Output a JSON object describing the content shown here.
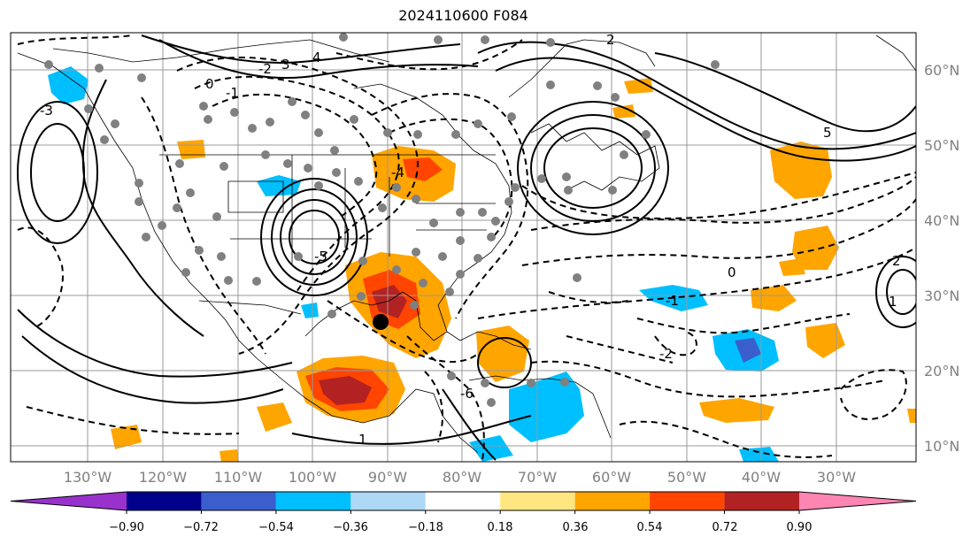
{
  "title": "2024110600 F084",
  "lon_labels": [
    "130°W",
    "120°W",
    "110°W",
    "100°W",
    "90°W",
    "80°W",
    "70°W",
    "60°W",
    "50°W",
    "40°W",
    "30°W"
  ],
  "lat_labels": [
    "60°N",
    "50°N",
    "40°N",
    "30°N",
    "20°N",
    "10°N"
  ],
  "colorbar": {
    "ticks": [
      "−0.90",
      "−0.72",
      "−0.54",
      "−0.36",
      "−0.18",
      "0.18",
      "0.36",
      "0.54",
      "0.72",
      "0.90"
    ],
    "colors": [
      "#9932CC",
      "#00008B",
      "#3A5FCD",
      "#00BFFF",
      "#ADD8F6",
      "#FFFFFF",
      "#FFE680",
      "#FFA500",
      "#FF4500",
      "#B22222",
      "#FF85B3"
    ]
  },
  "contour_labels": [
    "0",
    "-1",
    "-2",
    "3",
    "4",
    "-3",
    "2",
    "-4",
    "-5",
    "1",
    "-6",
    "5",
    "-1",
    "0",
    "-2",
    "1",
    "2"
  ],
  "colors": {
    "station_marker": "#808080",
    "key_point": "#000000"
  }
}
